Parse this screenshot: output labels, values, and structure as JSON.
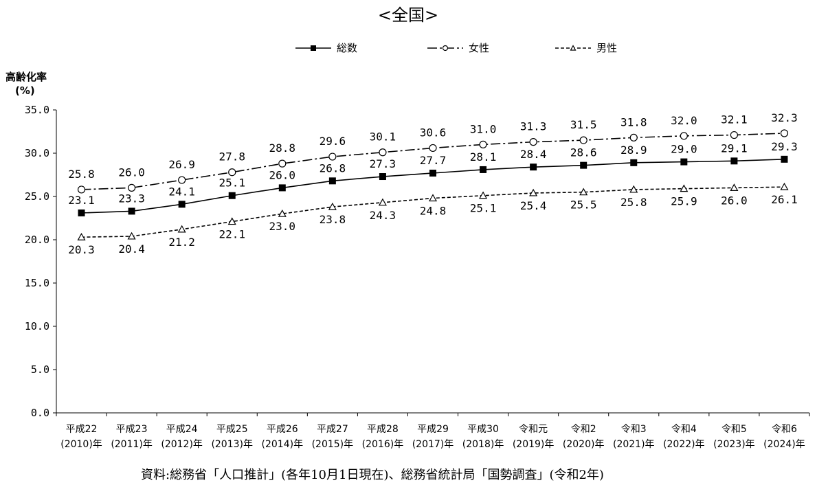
{
  "chart_data": {
    "type": "line",
    "title": "<全国>",
    "ylabel": "高齢化率",
    "yunit": "(%)",
    "ylim": [
      0,
      35
    ],
    "yticks": [
      "0.0",
      "5.0",
      "10.0",
      "15.0",
      "20.0",
      "25.0",
      "30.0",
      "35.0"
    ],
    "categories": [
      {
        "era": "平成22",
        "year": "(2010)年"
      },
      {
        "era": "平成23",
        "year": "(2011)年"
      },
      {
        "era": "平成24",
        "year": "(2012)年"
      },
      {
        "era": "平成25",
        "year": "(2013)年"
      },
      {
        "era": "平成26",
        "year": "(2014)年"
      },
      {
        "era": "平成27",
        "year": "(2015)年"
      },
      {
        "era": "平成28",
        "year": "(2016)年"
      },
      {
        "era": "平成29",
        "year": "(2017)年"
      },
      {
        "era": "平成30",
        "year": "(2018)年"
      },
      {
        "era": "令和元",
        "year": "(2019)年"
      },
      {
        "era": "令和2",
        "year": "(2020)年"
      },
      {
        "era": "令和3",
        "year": "(2021)年"
      },
      {
        "era": "令和4",
        "year": "(2022)年"
      },
      {
        "era": "令和5",
        "year": "(2023)年"
      },
      {
        "era": "令和6",
        "year": "(2024)年"
      }
    ],
    "series": [
      {
        "name": "総数",
        "marker": "square",
        "dash": "solid",
        "values": [
          23.1,
          23.3,
          24.1,
          25.1,
          26.0,
          26.8,
          27.3,
          27.7,
          28.1,
          28.4,
          28.6,
          28.9,
          29.0,
          29.1,
          29.3
        ]
      },
      {
        "name": "女性",
        "marker": "circle",
        "dash": "dashdot",
        "values": [
          25.8,
          26.0,
          26.9,
          27.8,
          28.8,
          29.6,
          30.1,
          30.6,
          31.0,
          31.3,
          31.5,
          31.8,
          32.0,
          32.1,
          32.3
        ]
      },
      {
        "name": "男性",
        "marker": "triangle",
        "dash": "dashed",
        "values": [
          20.3,
          20.4,
          21.2,
          22.1,
          23.0,
          23.8,
          24.3,
          24.8,
          25.1,
          25.4,
          25.5,
          25.8,
          25.9,
          26.0,
          26.1
        ]
      }
    ],
    "grid": false,
    "legend_position": "top",
    "source": "資料:総務省「人口推計」(各年10月1日現在)、総務省統計局「国勢調査」(令和2年)"
  }
}
